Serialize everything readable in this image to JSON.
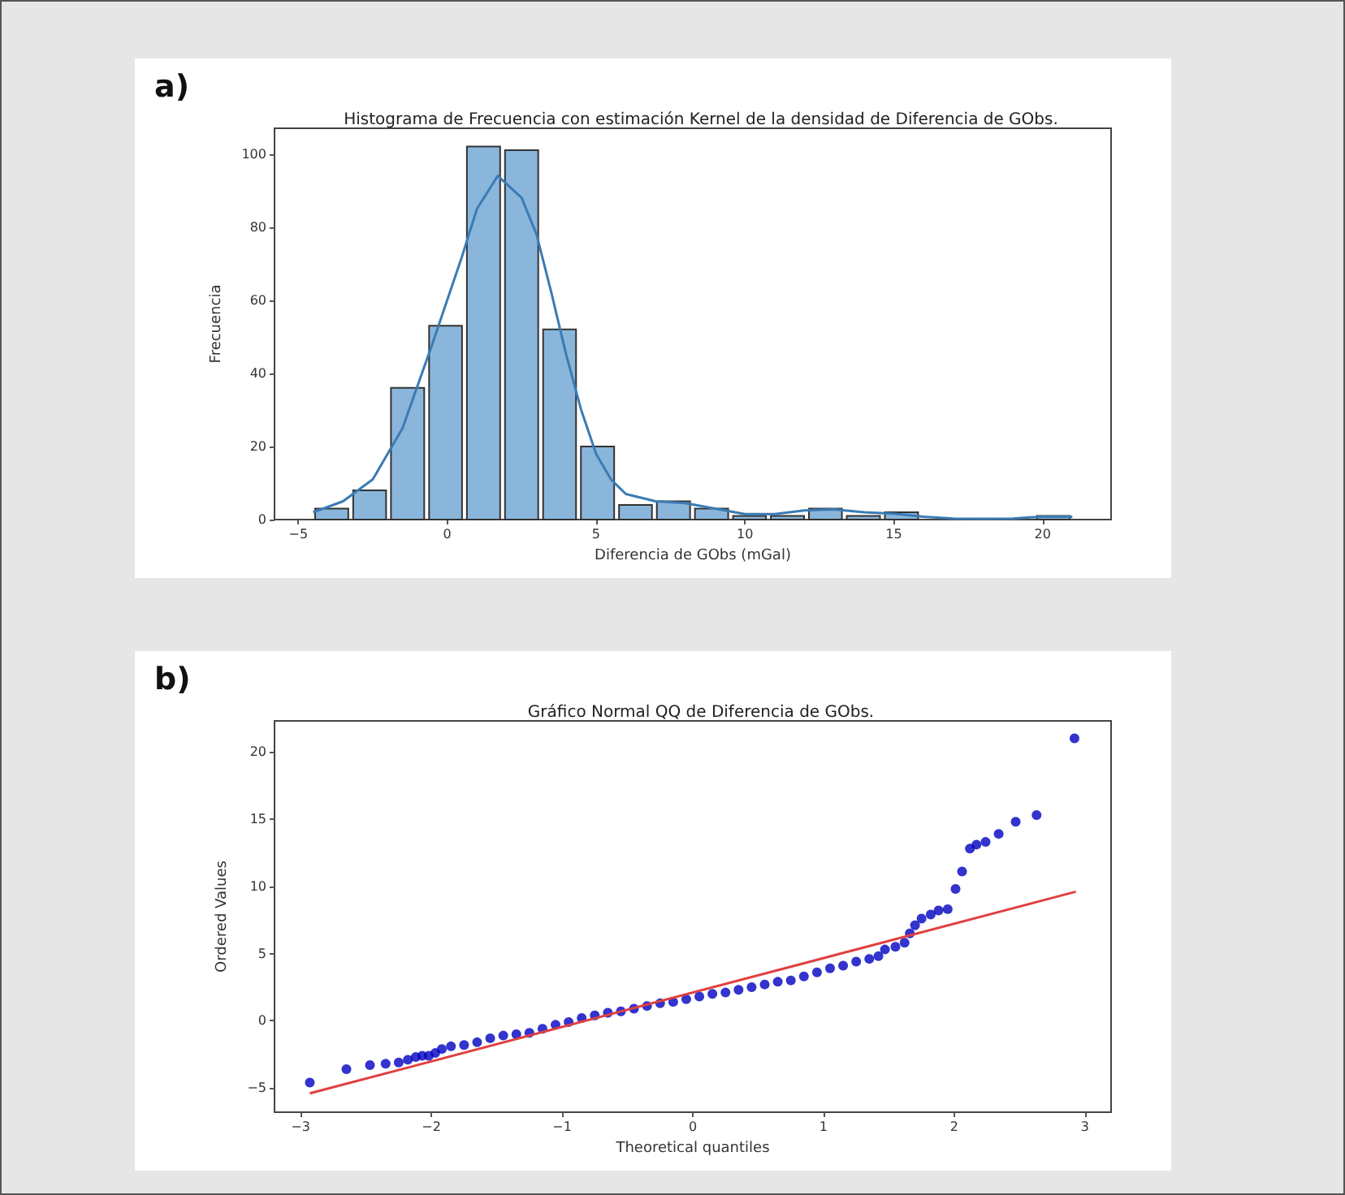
{
  "chart_data": [
    {
      "type": "histogram",
      "title": "Histograma de Frecuencia con estimación Kernel de la densidad de Diferencia de GObs.",
      "xlabel": "Diferencia de GObs (mGal)",
      "ylabel": "Frecuencia",
      "annotations": [
        "a)"
      ],
      "xlim": [
        -5.8,
        22.3
      ],
      "xticks": [
        -5,
        0,
        5,
        10,
        15,
        20
      ],
      "ylim": [
        0,
        107
      ],
      "yticks": [
        0,
        20,
        40,
        60,
        80,
        100
      ],
      "series": [
        {
          "color": "#8ab6dc",
          "bins": [
            -4.52,
            -3.24,
            -1.97,
            -0.69,
            0.58,
            1.86,
            3.14,
            4.41,
            5.69,
            6.96,
            8.24,
            9.52,
            10.79,
            12.07,
            13.34,
            14.62,
            15.9,
            17.17,
            18.45,
            19.72,
            21.0
          ],
          "values": [
            3,
            8,
            36,
            53,
            102,
            101,
            52,
            20,
            4,
            5,
            3,
            1,
            1,
            3,
            1,
            2,
            0,
            0,
            0,
            1
          ]
        },
        {
          "type": "line",
          "color": "#3b7bb4",
          "x": [
            -4.5,
            -3.5,
            -2.5,
            -1.5,
            -0.5,
            0.5,
            1.0,
            1.7,
            2.5,
            3.0,
            3.5,
            4.0,
            4.5,
            5.0,
            5.5,
            6.0,
            7.0,
            8.0,
            9.0,
            10.0,
            11.0,
            12.0,
            13.0,
            14.0,
            15.0,
            16.0,
            17.0,
            18.0,
            19.0,
            20.0,
            21.0
          ],
          "values": [
            2,
            5,
            11,
            25,
            48,
            72,
            85,
            94,
            88,
            78,
            62,
            45,
            30,
            18,
            11,
            7,
            5,
            4.5,
            3,
            1.5,
            1.5,
            2.5,
            2.8,
            2,
            1.6,
            0.8,
            0.3,
            0.2,
            0.3,
            0.8,
            0.8
          ]
        }
      ]
    },
    {
      "type": "scatter",
      "title": "Gráfico Normal QQ de Diferencia de GObs.",
      "xlabel": "Theoretical quantiles",
      "ylabel": "Ordered Values",
      "annotations": [
        "b)"
      ],
      "xlim": [
        -3.2,
        3.2
      ],
      "xticks": [
        -3,
        -2,
        -1,
        0,
        1,
        2,
        3
      ],
      "ylim": [
        -6.8,
        22.3
      ],
      "yticks": [
        -5,
        0,
        5,
        10,
        15,
        20
      ],
      "series": [
        {
          "marker": "circle",
          "color": "#0000c0",
          "x": [
            -2.93,
            -2.65,
            -2.47,
            -2.35,
            -2.25,
            -2.18,
            -2.12,
            -2.07,
            -2.02,
            -1.97,
            -1.92,
            -1.85,
            -1.75,
            -1.65,
            -1.55,
            -1.45,
            -1.35,
            -1.25,
            -1.15,
            -1.05,
            -0.95,
            -0.85,
            -0.75,
            -0.65,
            -0.55,
            -0.45,
            -0.35,
            -0.25,
            -0.15,
            -0.05,
            0.05,
            0.15,
            0.25,
            0.35,
            0.45,
            0.55,
            0.65,
            0.75,
            0.85,
            0.95,
            1.05,
            1.15,
            1.25,
            1.35,
            1.42,
            1.47,
            1.55,
            1.62,
            1.66,
            1.7,
            1.75,
            1.82,
            1.88,
            1.95,
            2.01,
            2.06,
            2.12,
            2.17,
            2.24,
            2.34,
            2.47,
            2.63,
            2.92
          ],
          "values": [
            -4.6,
            -3.6,
            -3.3,
            -3.2,
            -3.1,
            -2.9,
            -2.7,
            -2.6,
            -2.6,
            -2.4,
            -2.1,
            -1.9,
            -1.8,
            -1.6,
            -1.3,
            -1.1,
            -1.0,
            -0.9,
            -0.6,
            -0.3,
            -0.1,
            0.2,
            0.4,
            0.6,
            0.7,
            0.9,
            1.1,
            1.3,
            1.4,
            1.6,
            1.8,
            2.0,
            2.1,
            2.3,
            2.5,
            2.7,
            2.9,
            3.0,
            3.3,
            3.6,
            3.9,
            4.1,
            4.4,
            4.6,
            4.8,
            5.3,
            5.5,
            5.8,
            6.5,
            7.1,
            7.6,
            7.9,
            8.2,
            8.3,
            9.8,
            11.1,
            12.8,
            13.1,
            13.3,
            13.9,
            14.8,
            15.3,
            21.0
          ]
        },
        {
          "type": "line",
          "color": "#e04040",
          "x": [
            -2.93,
            2.93
          ],
          "values": [
            -5.4,
            9.6
          ]
        }
      ]
    }
  ]
}
